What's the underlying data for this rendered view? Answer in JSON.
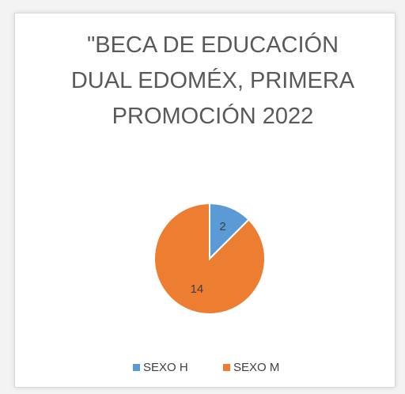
{
  "chart_data": {
    "type": "pie",
    "title": "\"BECA DE EDUCACIÓN DUAL EDOMÉX, PRIMERA PROMOCIÓN 2022",
    "categories": [
      "SEXO H",
      "SEXO M"
    ],
    "values": [
      2,
      14
    ],
    "colors": [
      "#5b9bd5",
      "#ed7d31"
    ],
    "legend": "bottom"
  }
}
